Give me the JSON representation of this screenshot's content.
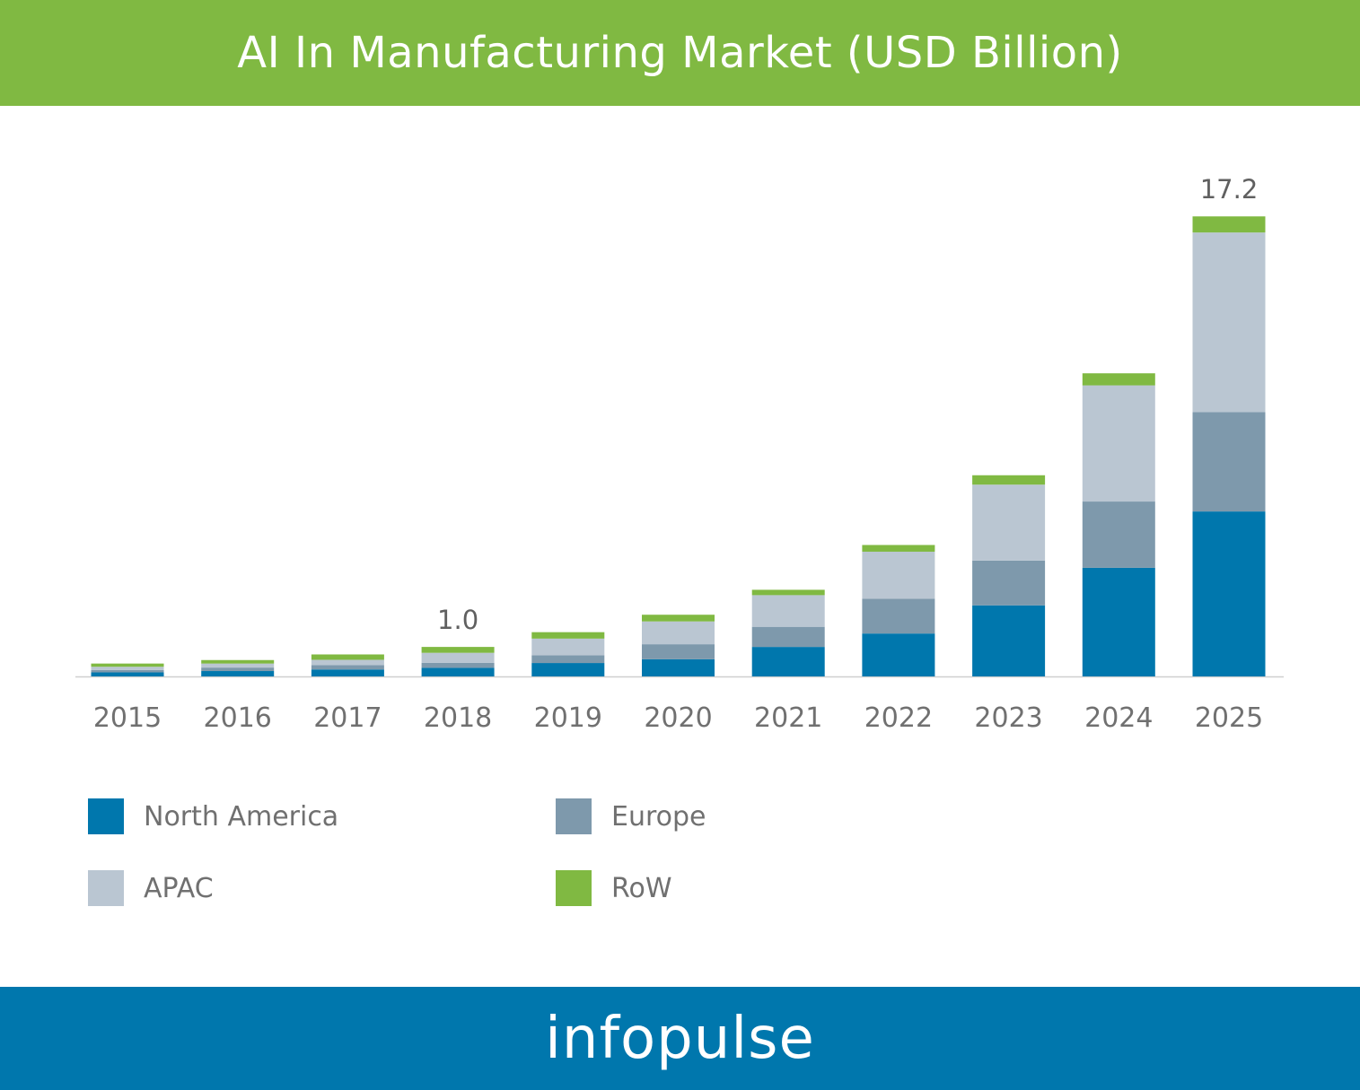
{
  "header": {
    "title": "AI In Manufacturing Market (USD Billion)"
  },
  "footer": {
    "brand": "infopulse"
  },
  "colors": {
    "header_bg": "#80b942",
    "footer_bg": "#0077ad",
    "north_america": "#0077ad",
    "europe": "#7e99ac",
    "apac": "#bac6d2",
    "row": "#80b942",
    "axis_text": "#707070",
    "value_label": "#606060"
  },
  "chart_data": {
    "type": "bar",
    "stacked": true,
    "title": "AI In Manufacturing Market (USD Billion)",
    "xlabel": "",
    "ylabel": "",
    "ylim": [
      0,
      18
    ],
    "grid": false,
    "legend_position": "bottom-left",
    "categories": [
      "2015",
      "2016",
      "2017",
      "2018",
      "2019",
      "2020",
      "2021",
      "2022",
      "2023",
      "2024",
      "2025"
    ],
    "series": [
      {
        "name": "North America",
        "color": "#0077ad",
        "values": [
          0.15,
          0.2,
          0.26,
          0.32,
          0.5,
          0.64,
          1.1,
          1.6,
          2.65,
          4.05,
          6.15
        ]
      },
      {
        "name": "Europe",
        "color": "#7e99ac",
        "values": [
          0.09,
          0.13,
          0.16,
          0.19,
          0.29,
          0.56,
          0.75,
          1.3,
          1.67,
          2.47,
          3.7
        ]
      },
      {
        "name": "APAC",
        "color": "#bac6d2",
        "values": [
          0.12,
          0.15,
          0.2,
          0.37,
          0.62,
          0.85,
          1.18,
          1.75,
          2.83,
          4.33,
          6.7
        ]
      },
      {
        "name": "RoW",
        "color": "#80b942",
        "values": [
          0.12,
          0.13,
          0.2,
          0.22,
          0.24,
          0.25,
          0.2,
          0.25,
          0.35,
          0.45,
          0.6
        ]
      }
    ],
    "data_labels": [
      {
        "category": "2018",
        "text": "1.0"
      },
      {
        "category": "2025",
        "text": "17.2"
      }
    ]
  },
  "legend": {
    "items": [
      {
        "label": "North America",
        "color": "#0077ad"
      },
      {
        "label": "Europe",
        "color": "#7e99ac"
      },
      {
        "label": "APAC",
        "color": "#bac6d2"
      },
      {
        "label": "RoW",
        "color": "#80b942"
      }
    ]
  }
}
